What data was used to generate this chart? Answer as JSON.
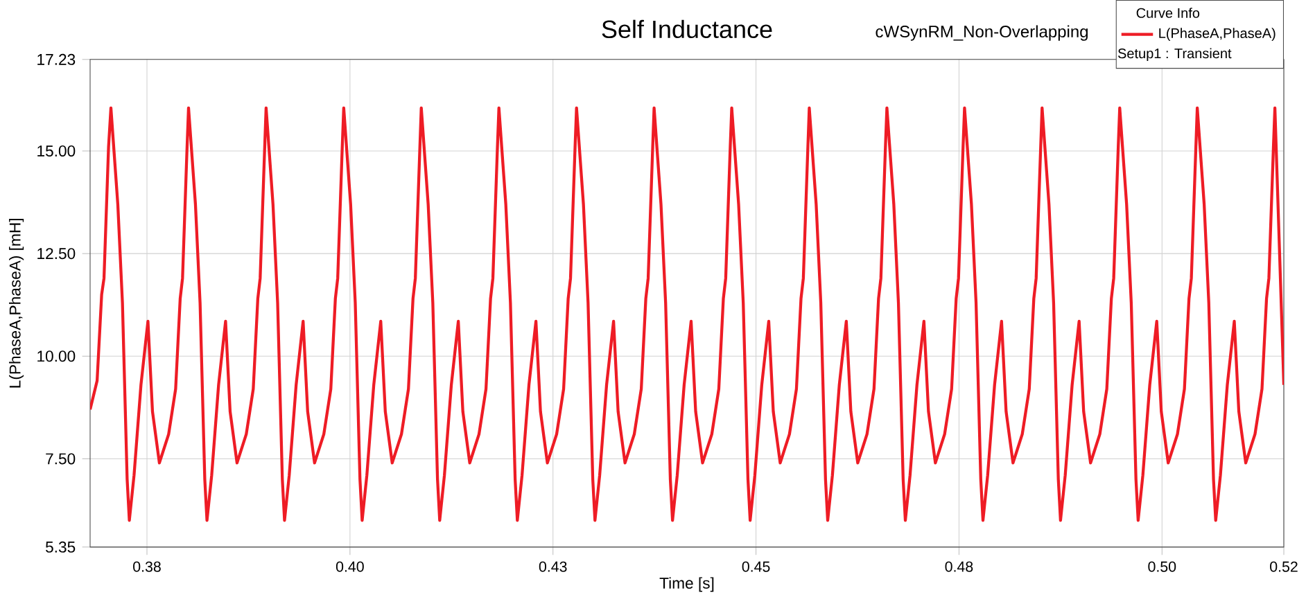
{
  "chart_data": {
    "type": "line",
    "title": "Self Inductance",
    "subtitle": "cWSynRM_Non-Overlapping",
    "xlabel": "Time [s]",
    "ylabel": "L(PhaseA,PhaseA) [mH]",
    "legend_title": "Curve Info",
    "annotations": [
      "Setup1 : Transient"
    ],
    "x": [
      0.368,
      0.36886,
      0.36942,
      0.36971,
      0.37027,
      0.37056,
      0.37141,
      0.37198,
      0.37256,
      0.37283,
      0.37341,
      0.37426,
      0.37512,
      0.37568,
      0.37653,
      0.37767,
      0.37853,
      0.37909,
      0.37938,
      0.37994,
      0.38012,
      0.38097,
      0.38154,
      0.38212,
      0.38239,
      0.38297,
      0.38382,
      0.38468,
      0.38524,
      0.38609,
      0.38723,
      0.38809,
      0.38865,
      0.38894,
      0.3895,
      0.38967,
      0.39052,
      0.39109,
      0.39167,
      0.39194,
      0.39252,
      0.39337,
      0.39423,
      0.39479,
      0.39564,
      0.39678,
      0.39764,
      0.3982,
      0.39849,
      0.39905,
      0.39923,
      0.40008,
      0.40065,
      0.40123,
      0.4015,
      0.40208,
      0.40293,
      0.40379,
      0.40435,
      0.4052,
      0.40634,
      0.4072,
      0.40776,
      0.40805,
      0.40861,
      0.40878,
      0.40963,
      0.4102,
      0.41078,
      0.41105,
      0.41163,
      0.41248,
      0.41334,
      0.4139,
      0.41475,
      0.41589,
      0.41675,
      0.41731,
      0.4176,
      0.41816,
      0.41834,
      0.41919,
      0.41976,
      0.42034,
      0.42061,
      0.42119,
      0.42204,
      0.4229,
      0.42346,
      0.42431,
      0.42545,
      0.42631,
      0.42687,
      0.42716,
      0.42772,
      0.4279,
      0.42875,
      0.42932,
      0.4299,
      0.43017,
      0.43075,
      0.4316,
      0.43246,
      0.43302,
      0.43387,
      0.43501,
      0.43587,
      0.43643,
      0.43672,
      0.43728,
      0.43745,
      0.4383,
      0.43887,
      0.43945,
      0.43972,
      0.4403,
      0.44115,
      0.44201,
      0.44257,
      0.44342,
      0.44456,
      0.44542,
      0.44598,
      0.44627,
      0.44683,
      0.44701,
      0.44786,
      0.44843,
      0.44901,
      0.44928,
      0.44986,
      0.45071,
      0.45157,
      0.45213,
      0.45298,
      0.45412,
      0.45498,
      0.45554,
      0.45583,
      0.45639,
      0.45656,
      0.45741,
      0.45798,
      0.45856,
      0.45883,
      0.45941,
      0.46026,
      0.46112,
      0.46168,
      0.46253,
      0.46367,
      0.46453,
      0.46509,
      0.46538,
      0.46594,
      0.46612,
      0.46697,
      0.46754,
      0.46812,
      0.46839,
      0.46897,
      0.46982,
      0.47068,
      0.47124,
      0.47209,
      0.47323,
      0.47409,
      0.47465,
      0.47494,
      0.4755,
      0.47568,
      0.47653,
      0.4771,
      0.47768,
      0.47795,
      0.47853,
      0.47938,
      0.48024,
      0.4808,
      0.48165,
      0.48279,
      0.48365,
      0.48421,
      0.4845,
      0.48506,
      0.48523,
      0.48608,
      0.48665,
      0.48723,
      0.4875,
      0.48808,
      0.48893,
      0.48979,
      0.49035,
      0.4912,
      0.49234,
      0.4932,
      0.49376,
      0.49405,
      0.49461,
      0.49479,
      0.49564,
      0.49621,
      0.49679,
      0.49706,
      0.49764,
      0.49849,
      0.49935,
      0.49991,
      0.50076,
      0.5019,
      0.50276,
      0.50332,
      0.50361,
      0.50417,
      0.50434,
      0.50519,
      0.50576,
      0.50634,
      0.50661,
      0.50719,
      0.50804,
      0.5089,
      0.50946,
      0.51031,
      0.51145,
      0.51231,
      0.51287,
      0.51316,
      0.51372,
      0.5139,
      0.515
    ],
    "series": [
      {
        "name": "L(PhaseA,PhaseA)",
        "color": "#ee1c25",
        "values": [
          8.7,
          9.4,
          11.5,
          11.9,
          15.1,
          16.05,
          13.7,
          11.3,
          7.0,
          6.0,
          7.1,
          9.3,
          10.85,
          8.65,
          7.4,
          8.1,
          9.2,
          11.4,
          11.9,
          15.1,
          16.05,
          13.7,
          11.3,
          7.0,
          6.0,
          7.1,
          9.3,
          10.85,
          8.65,
          7.4,
          8.1,
          9.2,
          11.4,
          11.9,
          15.1,
          16.05,
          13.7,
          11.3,
          7.0,
          6.0,
          7.1,
          9.3,
          10.85,
          8.65,
          7.4,
          8.1,
          9.2,
          11.4,
          11.9,
          15.1,
          16.05,
          13.7,
          11.3,
          7.0,
          6.0,
          7.1,
          9.3,
          10.85,
          8.65,
          7.4,
          8.1,
          9.2,
          11.4,
          11.9,
          15.1,
          16.05,
          13.7,
          11.3,
          7.0,
          6.0,
          7.1,
          9.3,
          10.85,
          8.65,
          7.4,
          8.1,
          9.2,
          11.4,
          11.9,
          15.1,
          16.05,
          13.7,
          11.3,
          7.0,
          6.0,
          7.1,
          9.3,
          10.85,
          8.65,
          7.4,
          8.1,
          9.2,
          11.4,
          11.9,
          15.1,
          16.05,
          13.7,
          11.3,
          7.0,
          6.0,
          7.1,
          9.3,
          10.85,
          8.65,
          7.4,
          8.1,
          9.2,
          11.4,
          11.9,
          15.1,
          16.05,
          13.7,
          11.3,
          7.0,
          6.0,
          7.1,
          9.3,
          10.85,
          8.65,
          7.4,
          8.1,
          9.2,
          11.4,
          11.9,
          15.1,
          16.05,
          13.7,
          11.3,
          7.0,
          6.0,
          7.1,
          9.3,
          10.85,
          8.65,
          7.4,
          8.1,
          9.2,
          11.4,
          11.9,
          15.1,
          16.05,
          13.7,
          11.3,
          7.0,
          6.0,
          7.1,
          9.3,
          10.85,
          8.65,
          7.4,
          8.1,
          9.2,
          11.4,
          11.9,
          15.1,
          16.05,
          13.7,
          11.3,
          7.0,
          6.0,
          7.1,
          9.3,
          10.85,
          8.65,
          7.4,
          8.1,
          9.2,
          11.4,
          11.9,
          15.1,
          16.05,
          13.7,
          11.3,
          7.0,
          6.0,
          7.1,
          9.3,
          10.85,
          8.65,
          7.4,
          8.1,
          9.2,
          11.4,
          11.9,
          15.1,
          16.05,
          13.7,
          11.3,
          7.0,
          6.0,
          7.1,
          9.3,
          10.85,
          8.65,
          7.4,
          8.1,
          9.2,
          11.4,
          11.9,
          15.1,
          16.05,
          13.7,
          11.3,
          7.0,
          6.0,
          7.1,
          9.3,
          10.85,
          8.65,
          7.4,
          8.1,
          9.2,
          11.4,
          11.9,
          15.1,
          16.05,
          13.7,
          11.3,
          7.0,
          6.0,
          7.1,
          9.3,
          10.85,
          8.65,
          7.4,
          8.1,
          9.2,
          11.4,
          11.9,
          15.1,
          16.05,
          9.3
        ]
      }
    ],
    "xlim": [
      0.368,
      0.515
    ],
    "ylim": [
      5.35,
      17.23
    ],
    "xticks": [
      {
        "value": 0.375,
        "label": "0.38"
      },
      {
        "value": 0.4,
        "label": "0.40"
      },
      {
        "value": 0.425,
        "label": "0.43"
      },
      {
        "value": 0.45,
        "label": "0.45"
      },
      {
        "value": 0.475,
        "label": "0.48"
      },
      {
        "value": 0.5,
        "label": "0.50"
      },
      {
        "value": 0.515,
        "label": "0.52"
      }
    ],
    "yticks": [
      5.35,
      {
        "value": 7.5,
        "label": "7.50"
      },
      {
        "value": 10,
        "label": "10.00"
      },
      {
        "value": 12.5,
        "label": "12.50"
      },
      {
        "value": 15,
        "label": "15.00"
      },
      17.23
    ],
    "grid": true,
    "legend": "top right"
  }
}
